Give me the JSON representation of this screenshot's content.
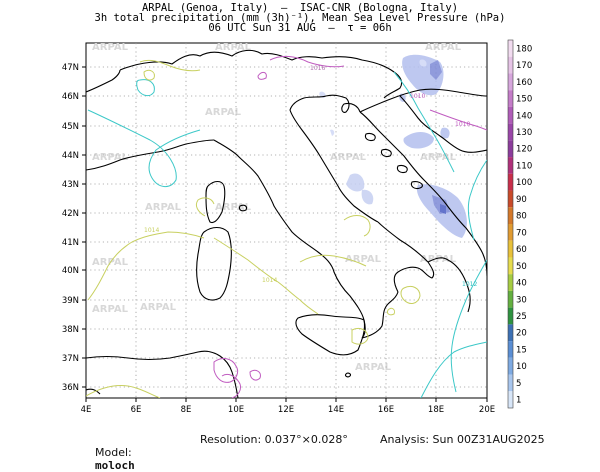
{
  "header": {
    "line1": "ARPAL (Genoa, Italy)  –  ISAC-CNR (Bologna, Italy)",
    "line2": "3h total precipitation (mm (3h)⁻¹), Mean Sea Level Pressure (hPa)",
    "line3": "06 UTC Sun 31 AUG  –  τ = 06h"
  },
  "map": {
    "lon_labels": [
      "4E",
      "6E",
      "8E",
      "10E",
      "12E",
      "14E",
      "16E",
      "18E",
      "20E"
    ],
    "lat_labels": [
      "47N",
      "46N",
      "45N",
      "44N",
      "43N",
      "42N",
      "41N",
      "40N",
      "39N",
      "38N",
      "37N",
      "36N"
    ],
    "watermark": "ARPAL",
    "isobar_labels": [
      "1016",
      "1010",
      "1010",
      "1014",
      "1014",
      "1012"
    ],
    "isobar_colors": {
      "1010": "#c060c0",
      "1012": "#30c0c0",
      "1014": "#c8d060",
      "1016": "#b070b0"
    },
    "precip_color": "#a8b4e8"
  },
  "colorbar": {
    "labels": [
      "180",
      "170",
      "160",
      "150",
      "140",
      "130",
      "120",
      "110",
      "100",
      "90",
      "80",
      "70",
      "60",
      "50",
      "40",
      "30",
      "25",
      "20",
      "15",
      "10",
      "5",
      "1"
    ],
    "colors": [
      "#f2dcf0",
      "#e6c4e6",
      "#d6a6dc",
      "#c47cc8",
      "#b05cb8",
      "#9a46a8",
      "#8c3c9c",
      "#b0307a",
      "#c82e4a",
      "#c94a2a",
      "#d4782a",
      "#e09b32",
      "#e8c13a",
      "#e6dc4e",
      "#a6cc42",
      "#64b040",
      "#2e9240",
      "#3c70b4",
      "#5a8ed4",
      "#7eaae2",
      "#a8c6ee",
      "#d8e6f8"
    ]
  },
  "footer": {
    "model_label": "Model:",
    "model_value": "moloch",
    "resolution": "Resolution: 0.037°×0.028°",
    "analysis": "Analysis: Sun 00Z31AUG2025"
  }
}
